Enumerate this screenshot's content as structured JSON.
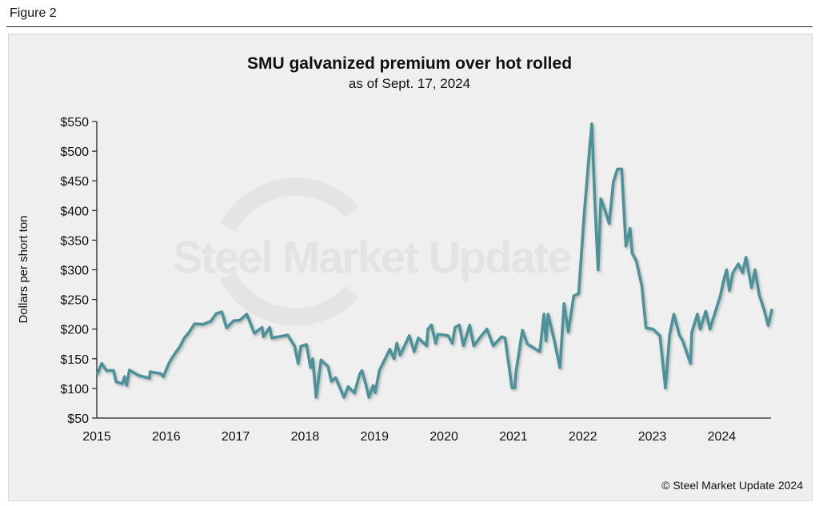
{
  "figure_label": "Figure 2",
  "copyright": "© Steel Market Update 2024",
  "watermark": "Steel Market Update",
  "colors": {
    "line": "#4e9199",
    "axis": "#222222",
    "panel": "#efefef"
  },
  "chart_data": {
    "type": "line",
    "title": "SMU galvanized premium over hot rolled",
    "subtitle": "as of Sept. 17, 2024",
    "xlabel": "",
    "ylabel": "Dollars per short ton",
    "xlim": [
      2015.0,
      2024.71
    ],
    "ylim": [
      50,
      550
    ],
    "grid": false,
    "x_ticks": [
      2015,
      2016,
      2017,
      2018,
      2019,
      2020,
      2021,
      2022,
      2023,
      2024
    ],
    "x_tick_labels": [
      "2015",
      "2016",
      "2017",
      "2018",
      "2019",
      "2020",
      "2021",
      "2022",
      "2023",
      "2024"
    ],
    "y_ticks": [
      50,
      100,
      150,
      200,
      250,
      300,
      350,
      400,
      450,
      500,
      550
    ],
    "y_tick_labels": [
      "$50",
      "$100",
      "$150",
      "$200",
      "$250",
      "$300",
      "$350",
      "$400",
      "$450",
      "$500",
      "$550"
    ],
    "series": [
      {
        "name": "Galvanized premium over hot rolled",
        "x": [
          2015.01,
          2015.07,
          2015.14,
          2015.24,
          2015.28,
          2015.37,
          2015.4,
          2015.43,
          2015.47,
          2015.6,
          2015.76,
          2015.77,
          2015.92,
          2015.96,
          2016.03,
          2016.08,
          2016.2,
          2016.26,
          2016.32,
          2016.41,
          2016.53,
          2016.64,
          2016.72,
          2016.8,
          2016.87,
          2016.97,
          2017.06,
          2017.16,
          2017.27,
          2017.38,
          2017.4,
          2017.49,
          2017.52,
          2017.66,
          2017.75,
          2017.85,
          2017.9,
          2017.94,
          2018.02,
          2018.08,
          2018.11,
          2018.16,
          2018.23,
          2018.33,
          2018.38,
          2018.44,
          2018.56,
          2018.62,
          2018.71,
          2018.79,
          2018.82,
          2018.88,
          2018.92,
          2018.98,
          2019.01,
          2019.07,
          2019.22,
          2019.28,
          2019.32,
          2019.37,
          2019.5,
          2019.57,
          2019.63,
          2019.75,
          2019.77,
          2019.82,
          2019.88,
          2019.91,
          2019.94,
          2020.06,
          2020.12,
          2020.16,
          2020.22,
          2020.28,
          2020.37,
          2020.43,
          2020.54,
          2020.62,
          2020.71,
          2020.83,
          2020.88,
          2020.98,
          2021.02,
          2021.04,
          2021.13,
          2021.2,
          2021.38,
          2021.44,
          2021.47,
          2021.5,
          2021.58,
          2021.67,
          2021.73,
          2021.79,
          2021.87,
          2021.94,
          2022.02,
          2022.1,
          2022.13,
          2022.17,
          2022.22,
          2022.26,
          2022.32,
          2022.38,
          2022.44,
          2022.5,
          2022.56,
          2022.62,
          2022.68,
          2022.71,
          2022.77,
          2022.85,
          2022.91,
          2023.01,
          2023.11,
          2023.19,
          2023.25,
          2023.31,
          2023.39,
          2023.44,
          2023.55,
          2023.57,
          2023.65,
          2023.69,
          2023.77,
          2023.83,
          2023.91,
          2023.98,
          2024.03,
          2024.07,
          2024.11,
          2024.16,
          2024.24,
          2024.3,
          2024.35,
          2024.43,
          2024.48,
          2024.54,
          2024.61,
          2024.67,
          2024.72
        ],
        "values": [
          125,
          142,
          130,
          130,
          111,
          108,
          120,
          105,
          131,
          122,
          117,
          128,
          125,
          120,
          140,
          151,
          171,
          185,
          193,
          209,
          208,
          213,
          226,
          229,
          202,
          214,
          215,
          225,
          193,
          203,
          187,
          203,
          185,
          188,
          190,
          171,
          142,
          171,
          174,
          135,
          150,
          85,
          148,
          137,
          112,
          118,
          85,
          103,
          92,
          125,
          130,
          104,
          85,
          105,
          93,
          130,
          166,
          150,
          176,
          156,
          189,
          162,
          185,
          172,
          200,
          207,
          176,
          191,
          191,
          189,
          176,
          203,
          207,
          172,
          207,
          172,
          189,
          200,
          172,
          187,
          185,
          101,
          101,
          130,
          198,
          175,
          162,
          225,
          180,
          225,
          185,
          135,
          243,
          195,
          256,
          260,
          395,
          508,
          546,
          422,
          300,
          420,
          400,
          378,
          448,
          470,
          470,
          340,
          370,
          328,
          315,
          273,
          202,
          200,
          189,
          101,
          190,
          225,
          190,
          180,
          142,
          195,
          225,
          200,
          230,
          200,
          230,
          256,
          283,
          300,
          265,
          295,
          310,
          295,
          321,
          270,
          300,
          258,
          233,
          206,
          232
        ]
      }
    ]
  }
}
